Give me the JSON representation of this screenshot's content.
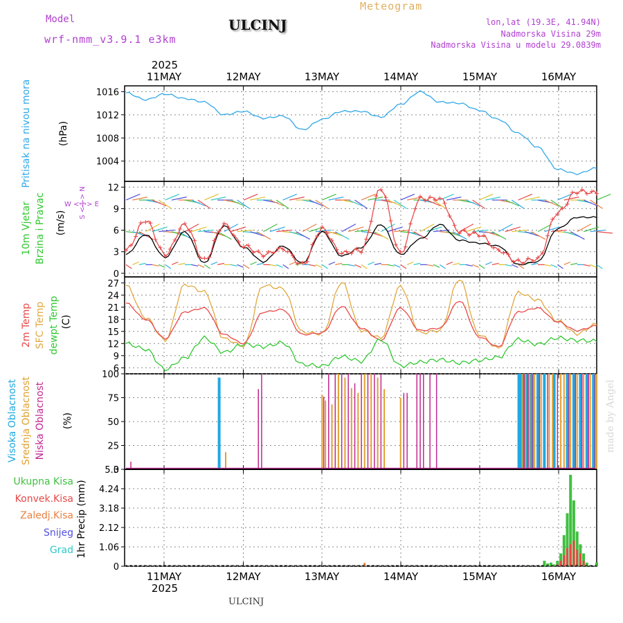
{
  "header": {
    "model_label": "Model",
    "model_value": "wrf-nmm_v3.9.1  e3km",
    "station": "ULCINJ",
    "meteogram": "Meteogram",
    "lonlat": "lon,lat (19.3E, 41.94N)",
    "elev": "Nadmorska Visina 29m",
    "elev_model": "Nadmorska Visina u modelu 29.0839m",
    "footer_station": "ULCINJ",
    "made_by": "made by Angel",
    "colors": {
      "model": "#b040d0",
      "meteogram": "#e0b060",
      "info": "#b040d0"
    }
  },
  "time_axis": {
    "year": "2025",
    "days": [
      "11MAY",
      "12MAY",
      "13MAY",
      "14MAY",
      "15MAY",
      "16MAY"
    ]
  },
  "chart_data": [
    {
      "type": "line",
      "id": "pressure",
      "title": "Pritisak na nivou mora",
      "ylabel": "(hPa)",
      "ylim": [
        1000.5,
        1017
      ],
      "yticks": [
        "1004",
        "1008",
        "1012",
        "1016"
      ],
      "x_hours": [
        0,
        6,
        12,
        18,
        24,
        30,
        36,
        42,
        48,
        54,
        60,
        66,
        72,
        78,
        84,
        90,
        96,
        102,
        108,
        114,
        120,
        126,
        132,
        138,
        144
      ],
      "series": [
        {
          "name": "MSLP",
          "color": "#30a8e8",
          "values": [
            1015.8,
            1014.6,
            1015.6,
            1014.8,
            1014.2,
            1012,
            1012.6,
            1011.4,
            1011.8,
            1009.4,
            1011.2,
            1012.6,
            1012.6,
            1011.6,
            1013.8,
            1016,
            1014.2,
            1014,
            1012.8,
            1011.2,
            1008.8,
            1006.4,
            1002.6,
            1001.8,
            1002.8
          ]
        }
      ]
    },
    {
      "type": "line",
      "id": "wind",
      "title": "10m Vjetar",
      "subtitle": "Brzina i Pravac",
      "ylabel": "(m/s)",
      "compass": "W <-|-> E",
      "compass_v": "S <-|-> N",
      "ylim": [
        -0.5,
        12.8
      ],
      "yticks": [
        "0",
        "3",
        "6",
        "9",
        "12"
      ],
      "x_hours": [
        0,
        6,
        12,
        18,
        24,
        30,
        36,
        42,
        48,
        54,
        60,
        66,
        72,
        78,
        84,
        90,
        96,
        102,
        108,
        114,
        120,
        126,
        132,
        138,
        144
      ],
      "series": [
        {
          "name": "wind speed",
          "color": "#000000",
          "values": [
            2.6,
            5.4,
            2.2,
            5.8,
            1.4,
            6.6,
            3.6,
            1.6,
            3.8,
            1.4,
            5.8,
            2.4,
            3.6,
            6.8,
            2.6,
            4.8,
            6.8,
            4.6,
            4.2,
            3.8,
            1.2,
            1.6,
            6.2,
            7.8,
            7.8
          ]
        },
        {
          "name": "wind gust",
          "color": "#e84848",
          "values": [
            3.2,
            7.4,
            2.6,
            6.8,
            1.8,
            6.8,
            3.8,
            2.6,
            3.4,
            1.2,
            6.2,
            2.8,
            3.2,
            11.8,
            2.8,
            10.4,
            10.4,
            5.8,
            5.4,
            3.2,
            1.6,
            2,
            8.4,
            11.4,
            11.2
          ]
        }
      ],
      "barbs_rows": [
        1.2,
        5.8,
        10.2
      ]
    },
    {
      "type": "line",
      "id": "temp",
      "title": "2m Temp",
      "title2": "SFC Temp",
      "title3": "dewpt Temp",
      "ylabel": "(C)",
      "ylim": [
        4.5,
        28.5
      ],
      "yticks": [
        "6",
        "9",
        "12",
        "15",
        "18",
        "21",
        "24",
        "27"
      ],
      "x_hours": [
        0,
        6,
        12,
        18,
        24,
        30,
        36,
        42,
        48,
        54,
        60,
        66,
        72,
        78,
        84,
        90,
        96,
        102,
        108,
        114,
        120,
        126,
        132,
        138,
        144
      ],
      "series": [
        {
          "name": "2m Temp",
          "color": "#e84848",
          "values": [
            22,
            18,
            13.2,
            19.8,
            20.8,
            14.2,
            12,
            19.8,
            20.4,
            14.2,
            14.6,
            21.2,
            15.8,
            12.8,
            20.8,
            15.2,
            15.8,
            22.6,
            13.6,
            11.2,
            19.8,
            20.8,
            17.4,
            15.2,
            16.4
          ]
        },
        {
          "name": "SFC Temp",
          "color": "#e0a840",
          "values": [
            26.4,
            18.4,
            12.8,
            26.6,
            24.8,
            13.2,
            11.4,
            26.4,
            25.6,
            14.8,
            14.4,
            27.2,
            15.2,
            13.4,
            26.2,
            14.6,
            15.2,
            28,
            14.2,
            10.8,
            24.6,
            22.8,
            17.6,
            14.4,
            16.8
          ]
        },
        {
          "name": "dewpt Temp",
          "color": "#30c830",
          "values": [
            12,
            10.6,
            5.6,
            8.4,
            13.4,
            9.8,
            11.8,
            11.2,
            12.2,
            6.8,
            6.4,
            8.8,
            7.6,
            13,
            6.4,
            7.4,
            8,
            7.2,
            7.8,
            8.6,
            13,
            11.8,
            13.4,
            12.8,
            12.6
          ]
        }
      ]
    },
    {
      "type": "bar",
      "id": "cloud",
      "title": "Visoka Oblacnost",
      "title2": "Srednja Oblacnost",
      "title3": "Niska Oblacnost",
      "ylabel": "(%)",
      "ylim": [
        0,
        100
      ],
      "yticks": [
        "0",
        "25",
        "50",
        "75",
        "100"
      ],
      "series": [
        {
          "name": "Visoka Oblacnost",
          "color": "#20a8e0",
          "x_hours": [
            28.5,
            120.2,
            120.6,
            121,
            121.5,
            122,
            122.8,
            124,
            126,
            128,
            131,
            135,
            137,
            139,
            141,
            143
          ],
          "values": [
            96,
            100,
            100,
            100,
            100,
            100,
            100,
            100,
            100,
            100,
            100,
            100,
            100,
            100,
            100,
            100
          ]
        },
        {
          "name": "Srednja Oblacnost",
          "color": "#e0a030",
          "x_hours": [
            30.5,
            60,
            61,
            63,
            65,
            67,
            69,
            71,
            73,
            75,
            77,
            79,
            84,
            121.2,
            122.2,
            123.5,
            125,
            127,
            129.5,
            130.5,
            133,
            134,
            136,
            138,
            140,
            142,
            144
          ],
          "values": [
            18,
            78,
            72,
            68,
            100,
            96,
            85,
            80,
            100,
            100,
            96,
            84,
            75,
            100,
            100,
            100,
            100,
            100,
            100,
            100,
            100,
            100,
            100,
            100,
            100,
            100,
            100
          ]
        },
        {
          "name": "Niska Oblacnost",
          "color": "#c02890",
          "x_hours": [
            1.5,
            40.5,
            41.5,
            60.5,
            62,
            64,
            66,
            68,
            70,
            72,
            74,
            76,
            78,
            85,
            86,
            89,
            90,
            91,
            93,
            95,
            121.8,
            123,
            124.5,
            126.5,
            129,
            132,
            135.5,
            137.5,
            139.5,
            141.5,
            143.5
          ],
          "values": [
            8,
            84,
            100,
            76,
            100,
            100,
            100,
            100,
            90,
            100,
            100,
            100,
            100,
            80,
            80,
            100,
            100,
            100,
            100,
            100,
            100,
            100,
            100,
            100,
            100,
            100,
            100,
            100,
            100,
            100,
            100
          ]
        }
      ]
    },
    {
      "type": "bar",
      "id": "precip",
      "title": "Ukupna Kisa",
      "title2": "Konvek.Kisa",
      "title3": "Zaledj.Kisa",
      "title4": "Snijeg",
      "title5": "Grad",
      "ylabel": "1hr Precip (mm)",
      "ylim": [
        0,
        5.3
      ],
      "yticks": [
        "0",
        "1.06",
        "2.12",
        "3.18",
        "4.24",
        "5.3"
      ],
      "series": [
        {
          "name": "Ukupna Kisa",
          "color": "#40c040",
          "x_hours": [
            128,
            129,
            130,
            131,
            132,
            133,
            134,
            135,
            136,
            137,
            138,
            139,
            140,
            141,
            144
          ],
          "values": [
            0.3,
            0.15,
            0.2,
            0.1,
            0.3,
            0.7,
            1.7,
            2.9,
            5.0,
            3.6,
            1.9,
            1.2,
            0.7,
            0.2,
            0.2
          ]
        },
        {
          "name": "Konvek.Kisa",
          "color": "#e84848",
          "x_hours": [
            132,
            133,
            134,
            135,
            136,
            137,
            138,
            139,
            140
          ],
          "values": [
            0.1,
            0.3,
            0.6,
            1.0,
            1.2,
            1.4,
            0.9,
            0.7,
            0.3
          ]
        },
        {
          "name": "Zaledj.Kisa",
          "color": "#e88040",
          "x_hours": [
            73
          ],
          "values": [
            0.18
          ]
        },
        {
          "name": "Snijeg",
          "color": "#5050e0",
          "x_hours": [],
          "values": []
        },
        {
          "name": "Grad",
          "color": "#30c8c8",
          "x_hours": [],
          "values": []
        }
      ]
    }
  ]
}
